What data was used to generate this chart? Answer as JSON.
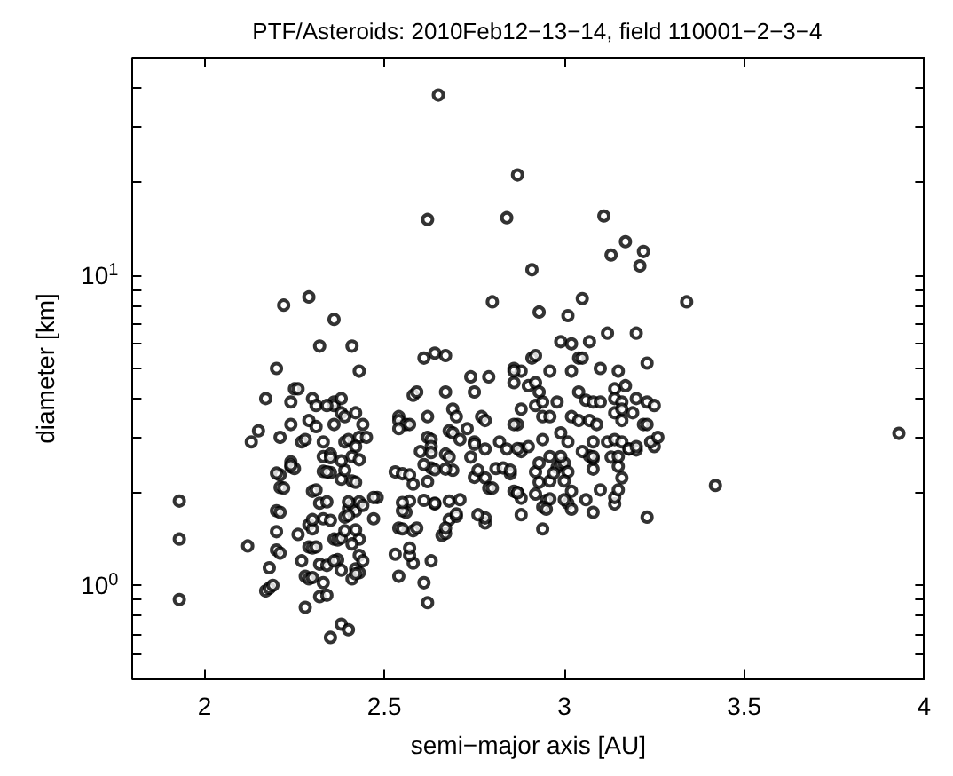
{
  "chart_data": {
    "type": "scatter",
    "title": "PTF/Asteroids: 2010Feb12−13−14, field 110001−2−3−4",
    "xlabel": "semi−major axis [AU]",
    "ylabel": "diameter [km]",
    "xlim": [
      1.8,
      4
    ],
    "xticks": [
      2,
      2.5,
      3,
      3.5,
      4
    ],
    "ylim": [
      0.5,
      50
    ],
    "yticks": [
      {
        "value": 0.5,
        "label": null
      },
      {
        "value": 0.6,
        "label": null
      },
      {
        "value": 0.7,
        "label": null
      },
      {
        "value": 0.8,
        "label": null
      },
      {
        "value": 0.9,
        "label": null
      },
      {
        "value": 1,
        "label": "10$^{0}$"
      },
      {
        "value": 2,
        "label": null
      },
      {
        "value": 3,
        "label": null
      },
      {
        "value": 4,
        "label": null
      },
      {
        "value": 5,
        "label": null
      },
      {
        "value": 6,
        "label": null
      },
      {
        "value": 7,
        "label": null
      },
      {
        "value": 8,
        "label": null
      },
      {
        "value": 9,
        "label": null
      },
      {
        "value": 10,
        "label": "10$^{1}$"
      },
      {
        "value": 20,
        "label": null
      },
      {
        "value": 30,
        "label": null
      },
      {
        "value": 40,
        "label": null
      },
      {
        "value": 50,
        "label": null
      }
    ],
    "log": "y",
    "grid": false,
    "marker": "circle",
    "series": [
      {
        "color": "#000000",
        "x": [
          2.65,
          2.87,
          2.62,
          2.84,
          2.22,
          2.29,
          2.36,
          2.32,
          2.41,
          2.2,
          2.43,
          2.8,
          2.91,
          2.61,
          2.64,
          2.67,
          2.74,
          2.79,
          2.86,
          2.75,
          2.67,
          2.58,
          2.59,
          2.17,
          2.24,
          2.25,
          2.26,
          2.3,
          2.36,
          2.36,
          2.38,
          2.31,
          2.34,
          2.38,
          2.39,
          2.42,
          2.24,
          2.29,
          2.31,
          2.36,
          2.44,
          2.15,
          2.13,
          2.21,
          2.27,
          2.28,
          2.33,
          2.39,
          2.4,
          2.43,
          2.45,
          2.54,
          2.54,
          2.56,
          2.57,
          2.54,
          2.62,
          2.69,
          2.7,
          2.68,
          2.69,
          2.62,
          2.63,
          2.63,
          2.6,
          2.73,
          2.71,
          2.75,
          2.77,
          2.78,
          2.82,
          2.87,
          2.88,
          2.88,
          2.88,
          2.9,
          2.91,
          2.75,
          2.33,
          2.35,
          2.24,
          2.42,
          1.93,
          1.93,
          1.93,
          2.12,
          2.18,
          2.17,
          2.18,
          2.19,
          2.2,
          2.21,
          2.2,
          2.2,
          2.21,
          2.21,
          2.2,
          2.21,
          2.22,
          2.24,
          2.25,
          2.24,
          2.28,
          2.32,
          2.34,
          2.35,
          2.38,
          2.4,
          2.27,
          2.28,
          2.29,
          2.3,
          2.33,
          2.32,
          2.34,
          2.26,
          2.29,
          2.3,
          2.31,
          2.29,
          2.3,
          2.32,
          2.34,
          2.33,
          2.35,
          2.3,
          2.31,
          2.36,
          2.37,
          2.38,
          2.37,
          2.36,
          2.38,
          2.41,
          2.42,
          2.43,
          2.42,
          2.43,
          2.44,
          2.43,
          2.41,
          2.42,
          2.39,
          2.4,
          2.41,
          2.42,
          2.43,
          2.4,
          2.41,
          2.42,
          2.38,
          2.39,
          2.33,
          2.35,
          2.34,
          2.35,
          2.41,
          2.43,
          2.38,
          2.39,
          2.4,
          2.3,
          2.44,
          2.47,
          2.48,
          2.47,
          2.53,
          2.54,
          2.58,
          2.61,
          2.62,
          2.63,
          2.57,
          2.57,
          2.53,
          2.54,
          2.58,
          2.59,
          2.55,
          2.56,
          2.55,
          2.57,
          2.55,
          2.55,
          2.57,
          2.58,
          2.62,
          2.64,
          2.64,
          2.66,
          2.67,
          2.68,
          2.7,
          2.7,
          2.67,
          2.68,
          2.71,
          2.61,
          2.63,
          2.64,
          2.61,
          2.63,
          2.67,
          2.69,
          2.67,
          2.68,
          2.74,
          2.75,
          2.78,
          2.76,
          2.78,
          2.78,
          2.79,
          2.8,
          2.81,
          2.83,
          2.85,
          2.85,
          2.86,
          2.87,
          2.88,
          2.76,
          2.78,
          2.84,
          2.87,
          3.42,
          3.23,
          2.94,
          2.88,
          2.87,
          2.92,
          2.93,
          2.92,
          2.93,
          2.95,
          2.96,
          2.94,
          2.95,
          2.98,
          2.96,
          2.99,
          2.97,
          3.0,
          3.01,
          3.0,
          3.02,
          3.01,
          3.0,
          3.02,
          3.06,
          3.08,
          3.08,
          3.08,
          3.07,
          3.1,
          3.14,
          3.14,
          3.15,
          3.16,
          3.15,
          3.13,
          3.18,
          3.2,
          3.25,
          3.11,
          3.17,
          3.13,
          3.22,
          3.21,
          3.34,
          3.93,
          3.05,
          2.93,
          3.01,
          3.12,
          3.2,
          2.99,
          3.02,
          3.07,
          2.92,
          3.04,
          3.05,
          3.23,
          2.96,
          3.02,
          3.1,
          3.15,
          2.92,
          2.93,
          3.14,
          3.17,
          3.04,
          2.88,
          2.92,
          2.94,
          2.98,
          3.06,
          3.08,
          3.1,
          3.14,
          3.16,
          3.2,
          3.23,
          3.25,
          2.86,
          2.94,
          2.96,
          3.02,
          3.04,
          3.07,
          3.09,
          3.14,
          3.16,
          3.16,
          3.19,
          3.22,
          3.23,
          2.94,
          2.99,
          3.01,
          3.08,
          3.12,
          3.14,
          3.16,
          3.24,
          3.26,
          2.9,
          2.96,
          2.99,
          3.05,
          3.08,
          3.15,
          3.18,
          3.2,
          2.86,
          2.86
        ],
        "values": [
          38,
          21,
          15.1,
          15.3,
          8.0,
          8.5,
          7.2,
          5.9,
          5.9,
          5.0,
          4.9,
          8.2,
          10.4,
          5.4,
          5.6,
          5.5,
          4.7,
          4.7,
          5.0,
          4.2,
          4.2,
          4.1,
          4.2,
          4.0,
          3.9,
          4.3,
          4.3,
          4.0,
          3.9,
          3.8,
          4.0,
          3.8,
          3.8,
          3.6,
          3.5,
          3.6,
          3.3,
          3.4,
          3.25,
          3.3,
          3.3,
          3.15,
          2.9,
          3.0,
          2.9,
          2.95,
          2.9,
          2.9,
          2.95,
          3.0,
          3.0,
          3.5,
          3.4,
          3.3,
          3.3,
          3.2,
          3.5,
          3.7,
          3.5,
          3.15,
          3.1,
          3.0,
          2.95,
          2.8,
          2.7,
          3.2,
          2.95,
          2.9,
          3.5,
          3.4,
          2.9,
          3.3,
          2.75,
          2.7,
          3.7,
          4.4,
          5.4,
          2.85,
          2.6,
          2.65,
          2.5,
          2.8,
          1.87,
          1.41,
          0.9,
          1.34,
          1.14,
          0.96,
          0.98,
          1.0,
          1.3,
          1.27,
          1.49,
          1.74,
          1.72,
          2.27,
          2.3,
          2.07,
          2.06,
          2.41,
          2.38,
          2.44,
          0.85,
          0.92,
          0.93,
          0.68,
          0.75,
          0.72,
          1.2,
          1.07,
          1.05,
          1.06,
          1.02,
          1.17,
          1.16,
          1.46,
          1.33,
          1.32,
          1.33,
          1.57,
          1.52,
          1.84,
          1.86,
          1.64,
          1.62,
          2.01,
          2.03,
          1.41,
          1.4,
          1.42,
          1.21,
          1.2,
          1.12,
          1.05,
          1.13,
          1.1,
          1.09,
          1.25,
          1.2,
          1.41,
          1.36,
          1.51,
          1.5,
          1.77,
          1.82,
          1.74,
          1.86,
          1.86,
          2.17,
          2.15,
          2.2,
          2.35,
          2.33,
          2.31,
          2.32,
          2.58,
          2.6,
          2.54,
          2.52,
          1.66,
          1.68,
          1.63,
          1.81,
          1.64,
          1.92,
          1.92,
          2.32,
          1.07,
          1.18,
          1.02,
          0.88,
          1.2,
          1.25,
          1.32,
          1.26,
          1.53,
          1.5,
          1.53,
          1.52,
          1.72,
          1.74,
          1.87,
          1.85,
          2.29,
          2.27,
          2.12,
          2.16,
          1.83,
          1.84,
          1.45,
          1.47,
          1.63,
          1.67,
          1.7,
          1.53,
          1.87,
          1.89,
          1.88,
          2.39,
          2.36,
          2.45,
          2.68,
          2.65,
          2.35,
          2.37,
          2.59,
          2.59,
          2.23,
          2.22,
          2.35,
          1.59,
          1.65,
          2.06,
          2.06,
          2.38,
          2.39,
          2.29,
          2.35,
          2.01,
          1.99,
          1.91,
          1.69,
          2.75,
          2.75,
          2.76,
          2.1,
          1.66,
          1.52,
          1.69,
          1.99,
          1.97,
          2.15,
          2.32,
          2.48,
          1.88,
          1.9,
          1.79,
          1.76,
          2.4,
          2.17,
          2.46,
          2.3,
          2.48,
          2.32,
          2.17,
          2.01,
          1.84,
          1.89,
          1.76,
          1.89,
          1.72,
          2.37,
          2.56,
          2.61,
          2.03,
          1.83,
          1.92,
          2.03,
          2.22,
          2.42,
          2.59,
          2.75,
          2.73,
          2.8,
          15.5,
          12.8,
          11.6,
          11.9,
          10.7,
          8.2,
          3.09,
          8.4,
          7.6,
          7.4,
          6.5,
          6.5,
          6.1,
          6.0,
          6.1,
          5.5,
          5.4,
          5.4,
          5.2,
          4.9,
          4.9,
          5.0,
          4.9,
          4.5,
          4.2,
          4.3,
          4.4,
          4.2,
          4.9,
          3.8,
          3.9,
          3.9,
          3.95,
          3.9,
          3.9,
          4.0,
          3.9,
          4.0,
          3.9,
          3.8,
          3.3,
          3.5,
          3.5,
          3.5,
          3.4,
          3.4,
          3.3,
          3.6,
          3.4,
          3.7,
          3.6,
          3.3,
          3.3,
          2.95,
          3.1,
          2.9,
          2.9,
          2.9,
          2.95,
          2.9,
          2.9,
          3.0,
          2.8,
          2.6,
          2.6,
          2.7,
          2.6,
          2.6,
          2.75,
          2.8,
          4.9,
          4.5
        ]
      }
    ]
  }
}
